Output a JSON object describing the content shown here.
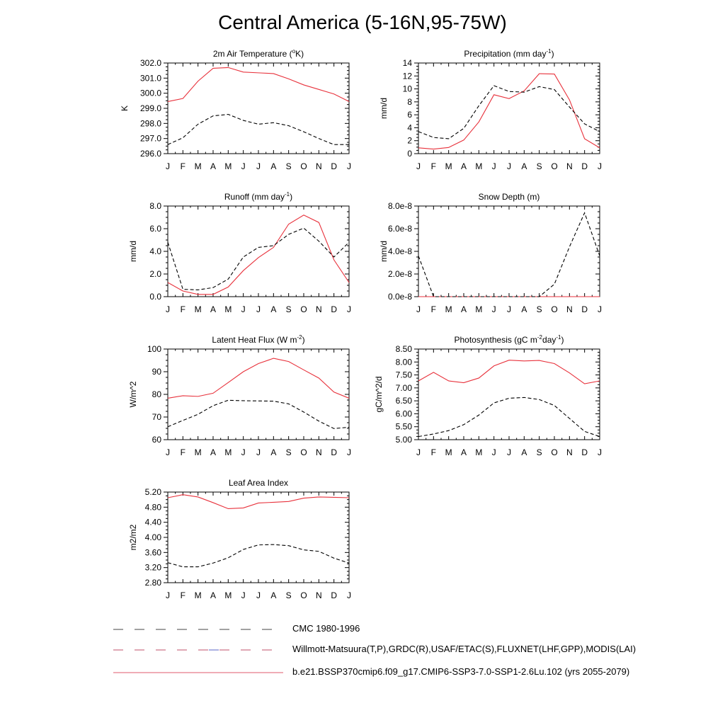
{
  "title": "Central America (5-16N,95-75W)",
  "months": [
    "J",
    "F",
    "M",
    "A",
    "M",
    "J",
    "J",
    "A",
    "S",
    "O",
    "N",
    "D",
    "J"
  ],
  "colors": {
    "model": "#e8323c",
    "obs": "#000000",
    "axis": "#000000",
    "legend_model": "#e25a6e",
    "legend_obs2": "#5560c0"
  },
  "legend": [
    {
      "label": "CMC 1980-1996",
      "style": "dashed"
    },
    {
      "label": "Willmott-Matsuura(T,P),GRDC(R),USAF/ETAC(S),FLUXNET(LHF,GPP),MODIS(LAI)",
      "style": "dashed-colored"
    },
    {
      "label": "b.e21.BSSP370cmip6.f09_g17.CMIP6-SSP3-7.0-SSP1-2.6Lu.102 (yrs 2055-2079)",
      "style": "solid"
    }
  ],
  "chart_data": [
    {
      "type": "line",
      "title_parts": [
        "2m Air Temperature (",
        "o",
        "K)"
      ],
      "title_sup_index": 1,
      "ylabel": "K",
      "ylim": [
        296.0,
        302.0
      ],
      "yticks": [
        "296.0",
        "297.0",
        "298.0",
        "299.0",
        "300.0",
        "301.0",
        "302.0"
      ],
      "ytick_values": [
        296.0,
        297.0,
        298.0,
        299.0,
        300.0,
        301.0,
        302.0
      ],
      "x": [
        "J",
        "F",
        "M",
        "A",
        "M",
        "J",
        "J",
        "A",
        "S",
        "O",
        "N",
        "D",
        "J"
      ],
      "series": [
        {
          "values": [
            299.45,
            299.65,
            300.8,
            301.65,
            301.7,
            301.4,
            301.35,
            301.3,
            300.95,
            300.55,
            300.25,
            299.95,
            299.45
          ],
          "color": "model",
          "dash": "solid"
        },
        {
          "values": [
            296.6,
            297.05,
            297.95,
            298.5,
            298.6,
            298.2,
            297.95,
            298.05,
            297.85,
            297.45,
            297.0,
            296.6,
            296.6
          ],
          "color": "obs",
          "dash": "dashed"
        }
      ]
    },
    {
      "type": "line",
      "title_parts": [
        "Precipitation (mm day",
        "-1",
        ")"
      ],
      "title_sup_index": 1,
      "ylabel": "mm/d",
      "ylim": [
        0,
        14
      ],
      "yticks": [
        "0",
        "2",
        "4",
        "6",
        "8",
        "10",
        "12",
        "14"
      ],
      "ytick_values": [
        0,
        2,
        4,
        6,
        8,
        10,
        12,
        14
      ],
      "x": [
        "J",
        "F",
        "M",
        "A",
        "M",
        "J",
        "J",
        "A",
        "S",
        "O",
        "N",
        "D",
        "J"
      ],
      "series": [
        {
          "values": [
            0.9,
            0.7,
            0.95,
            2.1,
            4.9,
            9.1,
            8.5,
            9.7,
            12.35,
            12.3,
            8.3,
            2.3,
            0.9
          ],
          "color": "model",
          "dash": "solid"
        },
        {
          "values": [
            3.4,
            2.5,
            2.3,
            3.9,
            7.4,
            10.5,
            9.6,
            9.5,
            10.35,
            9.9,
            7.2,
            4.6,
            3.4
          ],
          "color": "obs",
          "dash": "dashed"
        }
      ]
    },
    {
      "type": "line",
      "title_parts": [
        "Runoff (mm day",
        "-1",
        ")"
      ],
      "title_sup_index": 1,
      "ylabel": "mm/d",
      "ylim": [
        0,
        8
      ],
      "yticks": [
        "0.0",
        "2.0",
        "4.0",
        "6.0",
        "8.0"
      ],
      "ytick_values": [
        0,
        2,
        4,
        6,
        8
      ],
      "x": [
        "J",
        "F",
        "M",
        "A",
        "M",
        "J",
        "J",
        "A",
        "S",
        "O",
        "N",
        "D",
        "J"
      ],
      "series": [
        {
          "values": [
            1.25,
            0.5,
            0.2,
            0.2,
            0.85,
            2.3,
            3.45,
            4.35,
            6.4,
            7.2,
            6.55,
            3.25,
            1.25
          ],
          "color": "model",
          "dash": "solid"
        },
        {
          "values": [
            4.8,
            0.65,
            0.6,
            0.8,
            1.55,
            3.5,
            4.35,
            4.5,
            5.5,
            6.05,
            4.9,
            3.5,
            4.8
          ],
          "color": "obs",
          "dash": "dashed"
        }
      ]
    },
    {
      "type": "line",
      "title_parts": [
        "Snow Depth (m)"
      ],
      "title_sup_index": -1,
      "ylabel": "mm/d",
      "ylim": [
        0,
        8e-08
      ],
      "yticks": [
        "0.0e-8",
        "2.0e-8",
        "4.0e-8",
        "6.0e-8",
        "8.0e-8"
      ],
      "ytick_values": [
        0,
        2e-08,
        4e-08,
        6e-08,
        8e-08
      ],
      "x": [
        "J",
        "F",
        "M",
        "A",
        "M",
        "J",
        "J",
        "A",
        "S",
        "O",
        "N",
        "D",
        "J"
      ],
      "series": [
        {
          "values": [
            0,
            0,
            0,
            0,
            0,
            0,
            0,
            0,
            0,
            0,
            0,
            0,
            0
          ],
          "color": "model",
          "dash": "solid"
        },
        {
          "values": [
            3.6e-08,
            0,
            0,
            0,
            0,
            0,
            0,
            0,
            0,
            1.1e-08,
            4.4e-08,
            7.4e-08,
            3.6e-08
          ],
          "color": "obs",
          "dash": "dashed"
        }
      ]
    },
    {
      "type": "line",
      "title_parts": [
        "Latent Heat Flux (W m",
        "-2",
        ")"
      ],
      "title_sup_index": 1,
      "ylabel": "W/m^2",
      "ylim": [
        60,
        100
      ],
      "yticks": [
        "60",
        "70",
        "80",
        "90",
        "100"
      ],
      "ytick_values": [
        60,
        70,
        80,
        90,
        100
      ],
      "x": [
        "J",
        "F",
        "M",
        "A",
        "M",
        "J",
        "J",
        "A",
        "S",
        "O",
        "N",
        "D",
        "J"
      ],
      "series": [
        {
          "values": [
            78.3,
            79.4,
            79.1,
            80.5,
            85.2,
            90.0,
            93.6,
            95.9,
            94.5,
            90.8,
            87.2,
            81.0,
            78.3
          ],
          "color": "model",
          "dash": "solid"
        },
        {
          "values": [
            65.7,
            68.5,
            71.2,
            75.0,
            77.4,
            77.2,
            77.1,
            77.0,
            75.8,
            72.2,
            68.2,
            64.9,
            65.5
          ],
          "color": "obs",
          "dash": "dashed"
        }
      ]
    },
    {
      "type": "line",
      "title_parts": [
        "Photosynthesis (gC m",
        "-2",
        "day",
        "-1",
        ")"
      ],
      "title_sup_index": 1,
      "title_sup_index2": 3,
      "ylabel": "gC/m^2/d",
      "ylim": [
        5.0,
        8.5
      ],
      "yticks": [
        "5.00",
        "5.50",
        "6.00",
        "6.50",
        "7.00",
        "7.50",
        "8.00",
        "8.50"
      ],
      "ytick_values": [
        5.0,
        5.5,
        6.0,
        6.5,
        7.0,
        7.5,
        8.0,
        8.5
      ],
      "x": [
        "J",
        "F",
        "M",
        "A",
        "M",
        "J",
        "J",
        "A",
        "S",
        "O",
        "N",
        "D",
        "J"
      ],
      "series": [
        {
          "values": [
            7.27,
            7.6,
            7.27,
            7.2,
            7.38,
            7.85,
            8.07,
            8.04,
            8.06,
            7.94,
            7.58,
            7.16,
            7.27
          ],
          "color": "model",
          "dash": "solid"
        },
        {
          "values": [
            5.12,
            5.22,
            5.35,
            5.58,
            5.95,
            6.42,
            6.6,
            6.63,
            6.55,
            6.32,
            5.82,
            5.32,
            5.12
          ],
          "color": "obs",
          "dash": "dashed"
        }
      ]
    },
    {
      "type": "line",
      "title_parts": [
        "Leaf Area Index"
      ],
      "title_sup_index": -1,
      "ylabel": "m2/m2",
      "ylim": [
        2.8,
        5.2
      ],
      "yticks": [
        "2.80",
        "3.20",
        "3.60",
        "4.00",
        "4.40",
        "4.80",
        "5.20"
      ],
      "ytick_values": [
        2.8,
        3.2,
        3.6,
        4.0,
        4.4,
        4.8,
        5.2
      ],
      "x": [
        "J",
        "F",
        "M",
        "A",
        "M",
        "J",
        "J",
        "A",
        "S",
        "O",
        "N",
        "D",
        "J"
      ],
      "series": [
        {
          "values": [
            5.05,
            5.13,
            5.07,
            4.92,
            4.76,
            4.78,
            4.91,
            4.93,
            4.95,
            5.04,
            5.07,
            5.06,
            5.05
          ],
          "color": "model",
          "dash": "solid"
        },
        {
          "values": [
            3.33,
            3.22,
            3.22,
            3.32,
            3.46,
            3.68,
            3.8,
            3.81,
            3.78,
            3.67,
            3.63,
            3.45,
            3.32
          ],
          "color": "obs",
          "dash": "dashed"
        }
      ]
    }
  ]
}
